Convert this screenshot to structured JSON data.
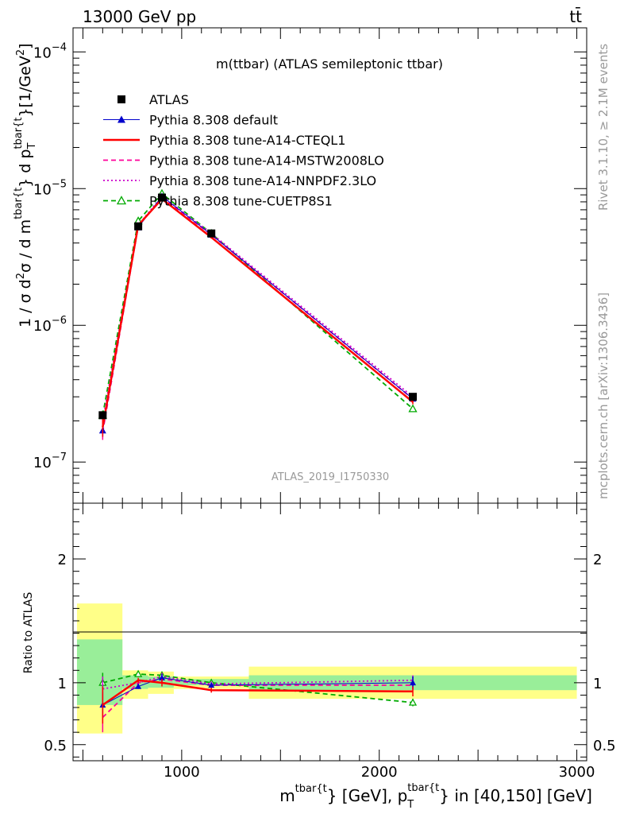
{
  "header": {
    "left": "13000 GeV pp",
    "right": "tt̄"
  },
  "side_labels": {
    "rivet": "Rivet 3.1.10, ≥ 2.1M events",
    "mcplots": "mcplots.cern.ch [arXiv:1306.3436]"
  },
  "chart_data": [
    {
      "type": "line",
      "title": "m(ttbar) (ATLAS semileptonic ttbar)",
      "watermark": "ATLAS_2019_I1750330",
      "ylabel_parts": [
        "1 / σ d",
        "2",
        "σ / d m",
        "tbar{t",
        "} d p",
        "T",
        "tbar{t",
        "}[1/GeV",
        "2",
        "]"
      ],
      "xlabel_parts": [
        "m",
        "tbar{t",
        "} [GeV], p",
        "T",
        "tbar{t",
        "} in [40,150] [GeV]"
      ],
      "x_scale": "linear",
      "y_scale": "log",
      "xlim": [
        450,
        3050
      ],
      "ylim": [
        5e-08,
        0.00015
      ],
      "y_ticks": [
        {
          "value": 1e-07,
          "base": "10",
          "exp": "−7"
        },
        {
          "value": 1e-06,
          "base": "10",
          "exp": "−6"
        },
        {
          "value": 1e-05,
          "base": "10",
          "exp": "−5"
        },
        {
          "value": 0.0001,
          "base": "10",
          "exp": "−4"
        }
      ],
      "legend_position": "top-left",
      "series": [
        {
          "name": "ATLAS",
          "color": "#000000",
          "style": "data-square",
          "x": [
            600,
            780,
            900,
            1150,
            2170
          ],
          "y": [
            2.2e-07,
            5.3e-06,
            8.6e-06,
            4.7e-06,
            3e-07
          ]
        },
        {
          "name": "Pythia 8.308 default",
          "color": "#0000cc",
          "style": "solid-triangle",
          "x": [
            600,
            780,
            900,
            1150,
            2170
          ],
          "y": [
            1.7e-07,
            5.2e-06,
            8.8e-06,
            4.6e-06,
            2.9e-07
          ]
        },
        {
          "name": "Pythia 8.308 tune-A14-CTEQL1",
          "color": "#ff0000",
          "style": "solid-thick",
          "x": [
            600,
            780,
            900,
            1150,
            2170
          ],
          "y": [
            1.8e-07,
            5.4e-06,
            8.4e-06,
            4.4e-06,
            2.75e-07
          ]
        },
        {
          "name": "Pythia 8.308 tune-A14-MSTW2008LO",
          "color": "#ff0099",
          "style": "dashed",
          "x": [
            600,
            780,
            900,
            1150,
            2170
          ],
          "y": [
            1.65e-07,
            5.3e-06,
            8.6e-06,
            4.6e-06,
            2.9e-07
          ]
        },
        {
          "name": "Pythia 8.308 tune-A14-NNPDF2.3LO",
          "color": "#cc00cc",
          "style": "dotted",
          "x": [
            600,
            780,
            900,
            1150,
            2170
          ],
          "y": [
            2e-07,
            5.4e-06,
            8.8e-06,
            4.7e-06,
            3e-07
          ]
        },
        {
          "name": "Pythia 8.308 tune-CUETP8S1",
          "color": "#00aa00",
          "style": "dashed-open-triangle",
          "x": [
            600,
            780,
            900,
            1150,
            2170
          ],
          "y": [
            2.2e-07,
            5.8e-06,
            9.2e-06,
            4.7e-06,
            2.45e-07
          ]
        }
      ]
    },
    {
      "type": "line",
      "ylabel": "Ratio to ATLAS",
      "y_scale": "linear",
      "ylim": [
        0.37,
        2.45
      ],
      "y_ticks": [
        0.5,
        1,
        2
      ],
      "x_ticks": [
        1000,
        2000,
        3000
      ],
      "bands": {
        "edges": [
          470,
          700,
          830,
          960,
          1340,
          3000
        ],
        "yellow": [
          [
            0.59,
            1.64
          ],
          [
            0.87,
            1.1
          ],
          [
            0.91,
            1.09
          ],
          [
            0.95,
            1.05
          ],
          [
            0.87,
            1.13
          ]
        ],
        "green": [
          [
            0.82,
            1.35
          ],
          [
            0.95,
            1.06
          ],
          [
            0.96,
            1.05
          ],
          [
            0.98,
            1.03
          ],
          [
            0.94,
            1.06
          ]
        ]
      },
      "series": [
        {
          "name": "Pythia 8.308 default",
          "x": [
            600,
            780,
            900,
            1150,
            2170
          ],
          "y": [
            0.82,
            0.97,
            1.04,
            0.98,
            1.0
          ],
          "err": [
            0.1,
            0.02,
            0.03,
            0.02,
            0.05
          ]
        },
        {
          "name": "Pythia 8.308 tune-A14-CTEQL1",
          "x": [
            600,
            780,
            900,
            1150,
            2170
          ],
          "y": [
            0.82,
            1.02,
            1.0,
            0.94,
            0.93
          ],
          "err": [
            0.15,
            0.02,
            0.03,
            0.02,
            0.04
          ]
        },
        {
          "name": "Pythia 8.308 tune-A14-MSTW2008LO",
          "x": [
            600,
            780,
            900,
            1150,
            2170
          ],
          "y": [
            0.72,
            1.0,
            1.03,
            0.98,
            0.98
          ],
          "err": [
            0.12,
            0.02,
            0.03,
            0.02,
            0.04
          ]
        },
        {
          "name": "Pythia 8.308 tune-A14-NNPDF2.3LO",
          "x": [
            600,
            780,
            900,
            1150,
            2170
          ],
          "y": [
            0.95,
            1.0,
            1.05,
            0.99,
            1.02
          ],
          "err": [
            0.1,
            0.02,
            0.03,
            0.02,
            0.04
          ]
        },
        {
          "name": "Pythia 8.308 tune-CUETP8S1",
          "x": [
            600,
            780,
            900,
            1150,
            2170
          ],
          "y": [
            1.0,
            1.07,
            1.06,
            1.0,
            0.84
          ],
          "err": [
            0.08,
            0.02,
            0.03,
            0.02,
            0.03
          ]
        }
      ]
    }
  ]
}
